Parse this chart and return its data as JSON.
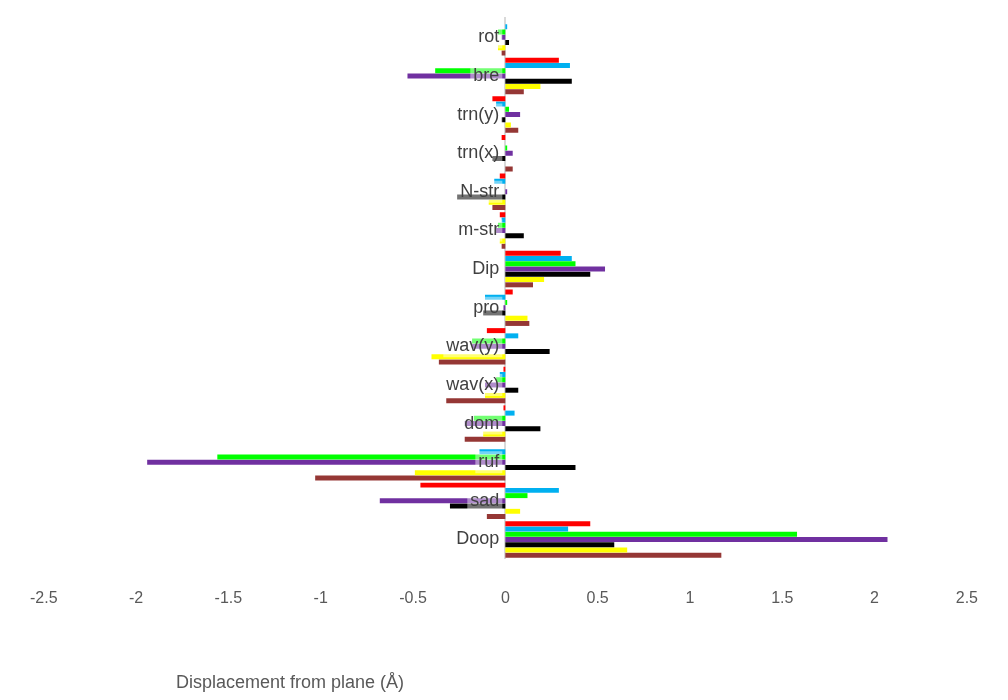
{
  "chart_data": {
    "type": "bar",
    "orientation": "horizontal",
    "xlabel": "Displacement from plane (Å)",
    "categories": [
      "rot",
      "bre",
      "trn(y)",
      "trn(x)",
      "N-str",
      "m-str",
      "Dip",
      "pro",
      "wav(y)",
      "wav(x)",
      "dom",
      "ruf",
      "sad",
      "Doop"
    ],
    "xlim": [
      -2.5,
      2.5
    ],
    "xticks": [
      -2.5,
      -2,
      -1.5,
      -1,
      -0.5,
      0,
      0.5,
      1,
      1.5,
      2,
      2.5
    ],
    "grid": false,
    "legend": false,
    "series": [
      {
        "color": "#ff0000",
        "values": [
          0,
          0.29,
          -0.07,
          -0.02,
          -0.03,
          -0.03,
          0.3,
          0.04,
          -0.1,
          -0.01,
          -0.01,
          0,
          -0.46,
          0.46
        ]
      },
      {
        "color": "#00b0f0",
        "values": [
          0.01,
          0.35,
          -0.05,
          0,
          -0.06,
          -0.02,
          0.36,
          -0.11,
          0.07,
          -0.03,
          0.05,
          -0.14,
          0.29,
          0.34
        ]
      },
      {
        "color": "#00ff00",
        "values": [
          -0.04,
          -0.38,
          0.02,
          0.01,
          0,
          -0.04,
          0.38,
          0.01,
          -0.18,
          -0.05,
          -0.17,
          -1.56,
          0.12,
          1.58
        ]
      },
      {
        "color": "#7030a0",
        "values": [
          -0.02,
          -0.53,
          0.08,
          0.04,
          0.01,
          -0.05,
          0.54,
          -0.01,
          -0.18,
          -0.11,
          -0.22,
          -1.94,
          -0.68,
          2.07
        ]
      },
      {
        "color": "#000000",
        "values": [
          0.02,
          0.36,
          -0.02,
          -0.07,
          -0.26,
          0.1,
          0.46,
          -0.12,
          0.24,
          0.07,
          0.19,
          0.38,
          -0.3,
          0.59
        ]
      },
      {
        "color": "#ffff00",
        "values": [
          -0.04,
          0.19,
          0.03,
          0,
          -0.09,
          -0.03,
          0.21,
          0.12,
          -0.4,
          -0.11,
          -0.12,
          -0.49,
          0.08,
          0.66
        ]
      },
      {
        "color": "#953735",
        "values": [
          -0.02,
          0.1,
          0.07,
          0.04,
          -0.07,
          -0.02,
          0.15,
          0.13,
          -0.36,
          -0.32,
          -0.22,
          -1.03,
          -0.1,
          1.17
        ]
      }
    ]
  }
}
